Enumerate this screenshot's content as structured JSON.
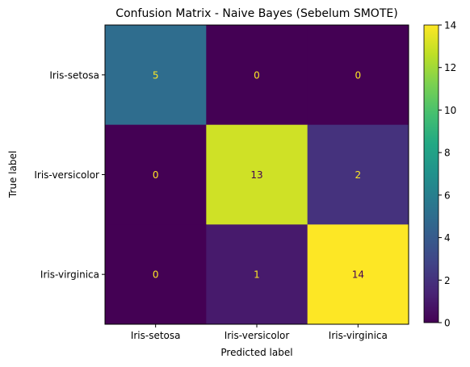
{
  "chart_data": {
    "type": "heatmap",
    "title": "Confusion Matrix - Naive Bayes (Sebelum SMOTE)",
    "xlabel": "Predicted label",
    "ylabel": "True label",
    "x_categories": [
      "Iris-setosa",
      "Iris-versicolor",
      "Iris-virginica"
    ],
    "y_categories": [
      "Iris-setosa",
      "Iris-versicolor",
      "Iris-virginica"
    ],
    "values": [
      [
        5,
        0,
        0
      ],
      [
        0,
        13,
        2
      ],
      [
        0,
        1,
        14
      ]
    ],
    "colorbar": {
      "min": 0,
      "max": 14,
      "ticks": [
        0,
        2,
        4,
        6,
        8,
        10,
        12,
        14
      ]
    },
    "colormap": "viridis",
    "annotation_colors": {
      "on_dark": "#fde725",
      "on_light": "#440154"
    }
  }
}
